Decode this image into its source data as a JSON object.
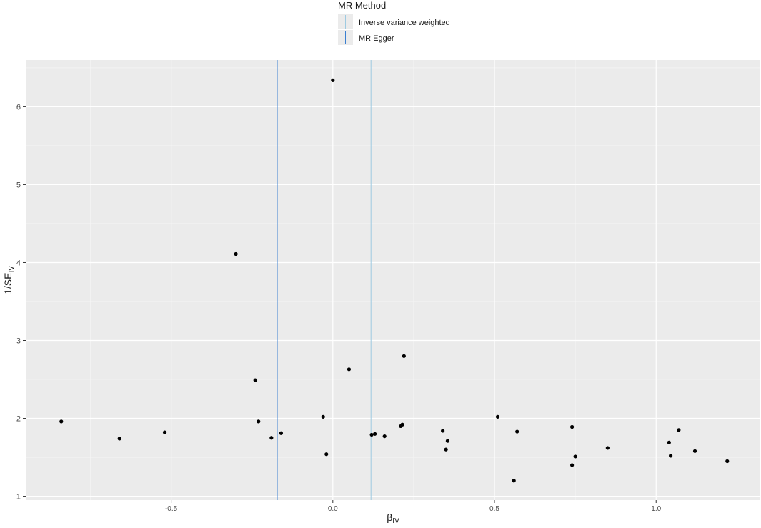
{
  "legend": {
    "title": "MR Method",
    "entries": [
      {
        "label": "Inverse variance weighted",
        "color": "#9ecae1"
      },
      {
        "label": "MR Egger",
        "color": "#3a7fd0"
      }
    ]
  },
  "chart_data": {
    "type": "scatter",
    "xlabel": "β",
    "xlabel_sub": "IV",
    "ylabel": "1/SE",
    "ylabel_sub": "IV",
    "xlim": [
      -0.95,
      1.32
    ],
    "ylim": [
      0.95,
      6.6
    ],
    "x_ticks": [
      -0.5,
      0.0,
      0.5,
      1.0
    ],
    "x_tick_labels": [
      "-0.5",
      "0.0",
      "0.5",
      "1.0"
    ],
    "y_ticks": [
      1,
      2,
      3,
      4,
      5,
      6
    ],
    "y_tick_labels": [
      "1",
      "2",
      "3",
      "4",
      "5",
      "6"
    ],
    "grid": true,
    "legend_position": "top",
    "background": "#ebebeb",
    "vlines": [
      {
        "name": "Inverse variance weighted",
        "x": 0.118,
        "color": "#9ecae1"
      },
      {
        "name": "MR Egger",
        "x": -0.172,
        "color": "#3a7fd0"
      }
    ],
    "points": [
      {
        "x": -0.84,
        "y": 1.96
      },
      {
        "x": -0.66,
        "y": 1.74
      },
      {
        "x": -0.52,
        "y": 1.82
      },
      {
        "x": -0.3,
        "y": 4.11
      },
      {
        "x": -0.24,
        "y": 2.49
      },
      {
        "x": -0.23,
        "y": 1.96
      },
      {
        "x": -0.19,
        "y": 1.75
      },
      {
        "x": -0.16,
        "y": 1.81
      },
      {
        "x": -0.03,
        "y": 2.02
      },
      {
        "x": -0.02,
        "y": 1.54
      },
      {
        "x": 0.0,
        "y": 6.34
      },
      {
        "x": 0.05,
        "y": 2.63
      },
      {
        "x": 0.12,
        "y": 1.79
      },
      {
        "x": 0.13,
        "y": 1.8
      },
      {
        "x": 0.16,
        "y": 1.77
      },
      {
        "x": 0.21,
        "y": 1.9
      },
      {
        "x": 0.215,
        "y": 1.92
      },
      {
        "x": 0.22,
        "y": 2.8
      },
      {
        "x": 0.34,
        "y": 1.84
      },
      {
        "x": 0.35,
        "y": 1.6
      },
      {
        "x": 0.355,
        "y": 1.71
      },
      {
        "x": 0.51,
        "y": 2.02
      },
      {
        "x": 0.56,
        "y": 1.2
      },
      {
        "x": 0.57,
        "y": 1.83
      },
      {
        "x": 0.74,
        "y": 1.89
      },
      {
        "x": 0.74,
        "y": 1.4
      },
      {
        "x": 0.75,
        "y": 1.51
      },
      {
        "x": 0.85,
        "y": 1.62
      },
      {
        "x": 1.04,
        "y": 1.69
      },
      {
        "x": 1.045,
        "y": 1.52
      },
      {
        "x": 1.07,
        "y": 1.85
      },
      {
        "x": 1.12,
        "y": 1.58
      },
      {
        "x": 1.22,
        "y": 1.45
      }
    ]
  }
}
